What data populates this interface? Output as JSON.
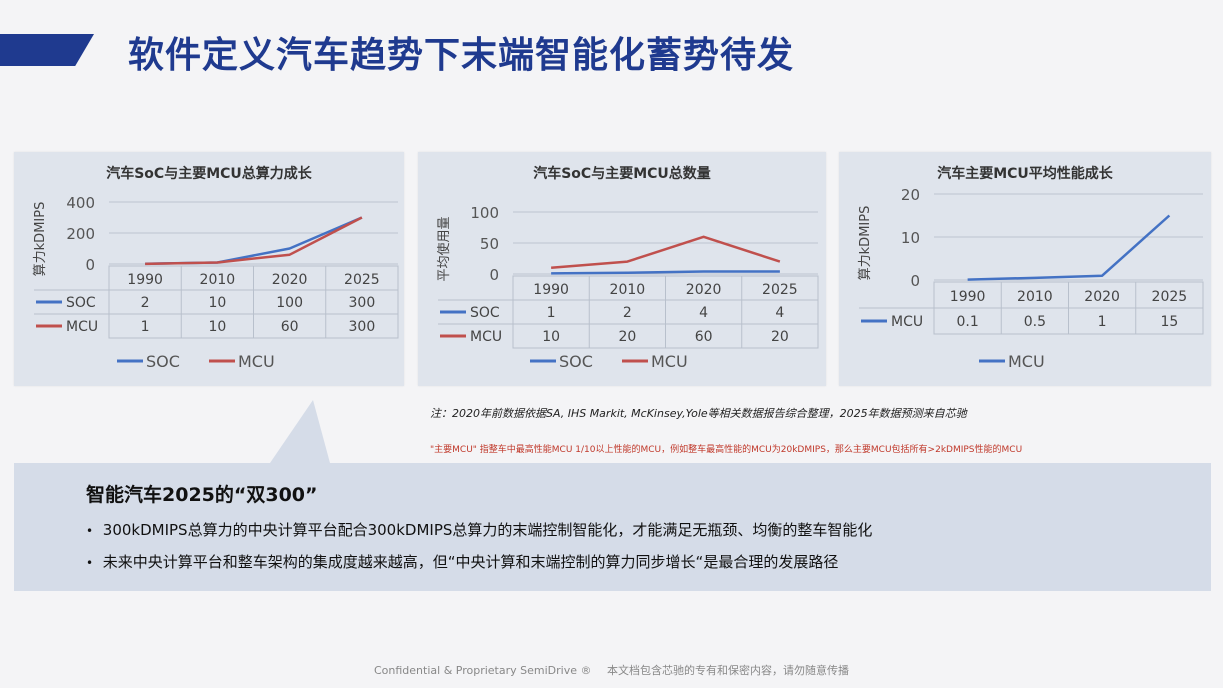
{
  "slide": {
    "title": "软件定义汽车趋势下末端智能化蓄势待发",
    "note": "注：2020年前数据依据SA, IHS Markit, McKinsey,Yole等相关数据报告综合整理，2025年数据预测来自芯驰",
    "note2": "\"主要MCU\" 指整车中最高性能MCU 1/10以上性能的MCU，例如整车最高性能的MCU为20kDMIPS，那么主要MCU包括所有>2kDMIPS性能的MCU",
    "callout": {
      "title": "智能汽车2025的“双300”",
      "bullets": [
        "300kDMIPS总算力的中央计算平台配合300kDMIPS总算力的末端控制智能化，才能满足无瓶颈、均衡的整车智能化",
        "未来中央计算平台和整车架构的集成度越来越高，但“中央计算和末端控制的算力同步增长“是最合理的发展路径"
      ],
      "bullet_mark": "•"
    },
    "footer": {
      "left": "Confidential & Proprietary SemiDrive ®",
      "right": "本文档包含芯驰的专有和保密内容，请勿随意传播"
    },
    "colors": {
      "accent": "#1f3a8f",
      "soc": "#4472c4",
      "mcu": "#c0504d"
    }
  },
  "chart_data": [
    {
      "type": "line",
      "title": "汽车SoC与主要MCU总算力成长",
      "ylabel": "算力kDMIPS",
      "xlabel": "",
      "categories": [
        "1990",
        "2010",
        "2020",
        "2025"
      ],
      "yticks": [
        0,
        200,
        400
      ],
      "ylim": [
        0,
        400
      ],
      "series": [
        {
          "name": "SOC",
          "values": [
            2,
            10,
            100,
            300
          ],
          "color": "#4472c4"
        },
        {
          "name": "MCU",
          "values": [
            1,
            10,
            60,
            300
          ],
          "color": "#c0504d"
        }
      ],
      "legend": "bottom",
      "data_table": true
    },
    {
      "type": "line",
      "title": "汽车SoC与主要MCU总数量",
      "ylabel": "平均使用量",
      "xlabel": "",
      "categories": [
        "1990",
        "2010",
        "2020",
        "2025"
      ],
      "yticks": [
        0,
        50,
        100
      ],
      "ylim": [
        0,
        100
      ],
      "series": [
        {
          "name": "SOC",
          "values": [
            1,
            2,
            4,
            4
          ],
          "color": "#4472c4"
        },
        {
          "name": "MCU",
          "values": [
            10,
            20,
            60,
            20
          ],
          "color": "#c0504d"
        }
      ],
      "legend": "bottom",
      "data_table": true
    },
    {
      "type": "line",
      "title": "汽车主要MCU平均性能成长",
      "ylabel": "算力kDMIPS",
      "xlabel": "",
      "categories": [
        "1990",
        "2010",
        "2020",
        "2025"
      ],
      "yticks": [
        0,
        10,
        20
      ],
      "ylim": [
        0,
        20
      ],
      "series": [
        {
          "name": "MCU",
          "values": [
            0.1,
            0.5,
            1,
            15
          ],
          "color": "#4472c4"
        }
      ],
      "legend": "bottom",
      "data_table": true
    }
  ]
}
